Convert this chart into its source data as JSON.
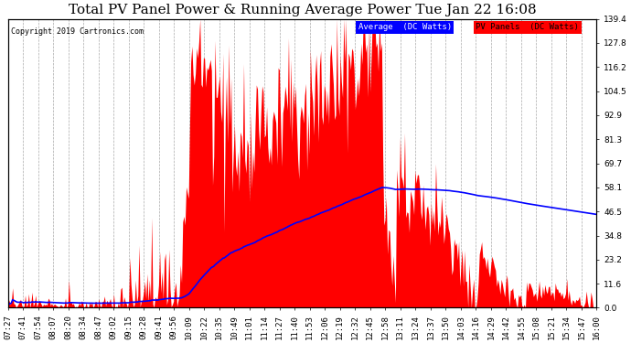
{
  "title": "Total PV Panel Power & Running Average Power Tue Jan 22 16:08",
  "copyright": "Copyright 2019 Cartronics.com",
  "legend_avg": "Average  (DC Watts)",
  "legend_pv": "PV Panels  (DC Watts)",
  "legend_avg_bg": "#0000ff",
  "legend_pv_bg": "#ff0000",
  "legend_avg_fg": "#ffffff",
  "legend_pv_fg": "#000000",
  "ylabel_right_values": [
    0.0,
    11.6,
    23.2,
    34.8,
    46.5,
    58.1,
    69.7,
    81.3,
    92.9,
    104.5,
    116.2,
    127.8,
    139.4
  ],
  "ymax": 139.4,
  "ymin": 0.0,
  "bar_color": "#ff0000",
  "avg_line_color": "#0000ff",
  "background_color": "#ffffff",
  "grid_color": "#aaaaaa",
  "title_fontsize": 11,
  "tick_fontsize": 6.5,
  "x_tick_labels": [
    "07:27",
    "07:41",
    "07:54",
    "08:07",
    "08:20",
    "08:34",
    "08:47",
    "09:02",
    "09:15",
    "09:28",
    "09:41",
    "09:56",
    "10:09",
    "10:22",
    "10:35",
    "10:49",
    "11:01",
    "11:14",
    "11:27",
    "11:40",
    "11:53",
    "12:06",
    "12:19",
    "12:32",
    "12:45",
    "12:58",
    "13:11",
    "13:24",
    "13:37",
    "13:50",
    "14:03",
    "14:16",
    "14:29",
    "14:42",
    "14:55",
    "15:08",
    "15:21",
    "15:34",
    "15:47",
    "16:00"
  ],
  "n_ticks": 40
}
